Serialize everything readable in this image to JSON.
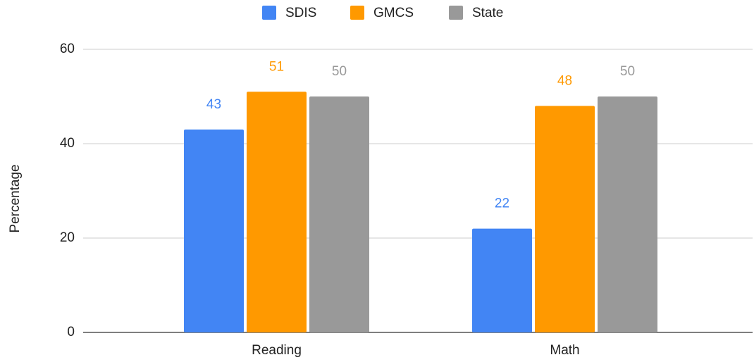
{
  "chart_data": {
    "type": "bar",
    "y_label": "Percentage",
    "categories": [
      "Reading",
      "Math"
    ],
    "series": [
      {
        "name": "SDIS",
        "color": "#4285f4",
        "values": [
          43,
          22
        ]
      },
      {
        "name": "GMCS",
        "color": "#ff9900",
        "values": [
          51,
          48
        ]
      },
      {
        "name": "State",
        "color": "#999999",
        "values": [
          50,
          50
        ]
      }
    ],
    "ylim": [
      0,
      60
    ],
    "yticks": [
      0,
      20,
      40,
      60
    ],
    "grid": true,
    "legend": "top"
  }
}
